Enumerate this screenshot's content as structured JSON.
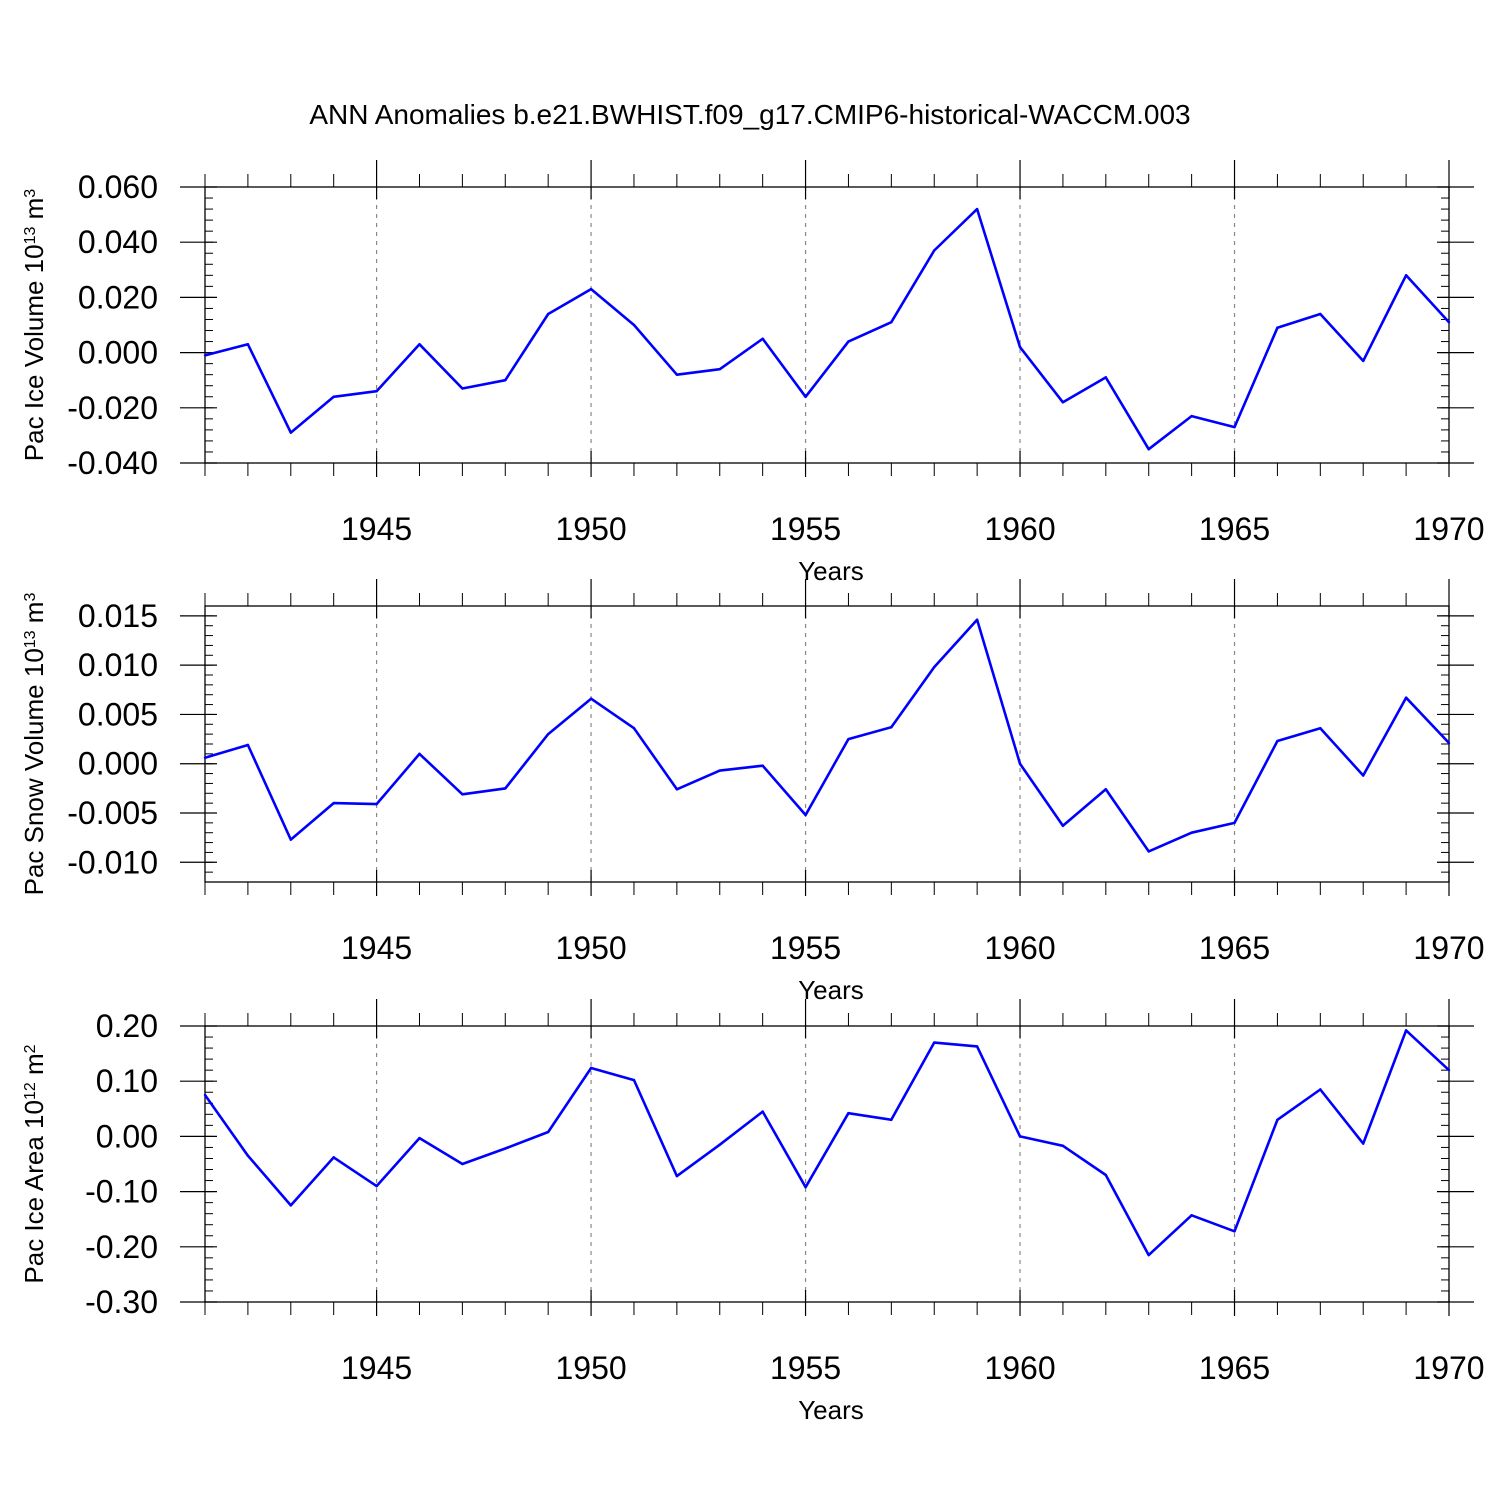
{
  "figure": {
    "title": "ANN Anomalies b.e21.BWHIST.f09_g17.CMIP6-historical-WACCM.003"
  },
  "chart_data": [
    {
      "type": "line",
      "ylabel": "Pac Ice Volume",
      "ylabel_units": {
        "base": "10",
        "exp": "13",
        "unit": "m",
        "unit_exp": "3"
      },
      "xlabel": "Years",
      "xlim": [
        1941,
        1970
      ],
      "ylim": [
        -0.04,
        0.06
      ],
      "yticks": [
        "0.060",
        "0.040",
        "0.020",
        "0.000",
        "-0.020",
        "-0.040"
      ],
      "yticks_values": [
        0.06,
        0.04,
        0.02,
        0.0,
        -0.02,
        -0.04
      ],
      "xticks": [
        "1945",
        "1950",
        "1955",
        "1960",
        "1965",
        "1970"
      ],
      "xticks_values": [
        1945,
        1950,
        1955,
        1960,
        1965,
        1970
      ],
      "line_color": "#0000ff",
      "x": [
        1941,
        1942,
        1943,
        1944,
        1945,
        1946,
        1947,
        1948,
        1949,
        1950,
        1951,
        1952,
        1953,
        1954,
        1955,
        1956,
        1957,
        1958,
        1959,
        1960,
        1961,
        1962,
        1963,
        1964,
        1965,
        1966,
        1967,
        1968,
        1969,
        1970
      ],
      "values": [
        -0.001,
        0.003,
        -0.029,
        -0.016,
        -0.014,
        0.003,
        -0.013,
        -0.01,
        0.014,
        0.023,
        0.01,
        -0.008,
        -0.006,
        0.005,
        -0.016,
        0.004,
        0.011,
        0.037,
        0.052,
        0.002,
        -0.018,
        -0.009,
        -0.035,
        -0.023,
        -0.027,
        0.009,
        0.014,
        -0.003,
        0.028,
        0.011
      ]
    },
    {
      "type": "line",
      "ylabel": "Pac Snow Volume",
      "ylabel_units": {
        "base": "10",
        "exp": "13",
        "unit": "m",
        "unit_exp": "3"
      },
      "xlabel": "Years",
      "xlim": [
        1941,
        1970
      ],
      "ylim": [
        -0.012,
        0.016
      ],
      "yticks": [
        "0.015",
        "0.010",
        "0.005",
        "0.000",
        "-0.005",
        "-0.010"
      ],
      "yticks_values": [
        0.015,
        0.01,
        0.005,
        0.0,
        -0.005,
        -0.01
      ],
      "xticks": [
        "1945",
        "1950",
        "1955",
        "1960",
        "1965",
        "1970"
      ],
      "xticks_values": [
        1945,
        1950,
        1955,
        1960,
        1965,
        1970
      ],
      "line_color": "#0000ff",
      "x": [
        1941,
        1942,
        1943,
        1944,
        1945,
        1946,
        1947,
        1948,
        1949,
        1950,
        1951,
        1952,
        1953,
        1954,
        1955,
        1956,
        1957,
        1958,
        1959,
        1960,
        1961,
        1962,
        1963,
        1964,
        1965,
        1966,
        1967,
        1968,
        1969,
        1970
      ],
      "values": [
        0.0006,
        0.0019,
        -0.0077,
        -0.004,
        -0.0041,
        0.001,
        -0.0031,
        -0.0025,
        0.003,
        0.0066,
        0.0036,
        -0.0026,
        -0.0007,
        -0.0002,
        -0.0052,
        0.0025,
        0.0037,
        0.0098,
        0.0146,
        0.0,
        -0.0063,
        -0.0026,
        -0.0089,
        -0.007,
        -0.006,
        0.0023,
        0.0036,
        -0.0012,
        0.0067,
        0.0021
      ]
    },
    {
      "type": "line",
      "ylabel": "Pac Ice Area",
      "ylabel_units": {
        "base": "10",
        "exp": "12",
        "unit": "m",
        "unit_exp": "2"
      },
      "xlabel": "Years",
      "xlim": [
        1941,
        1970
      ],
      "ylim": [
        -0.3,
        0.2
      ],
      "yticks": [
        "0.20",
        "0.10",
        "0.00",
        "-0.10",
        "-0.20",
        "-0.30"
      ],
      "yticks_values": [
        0.2,
        0.1,
        0.0,
        -0.1,
        -0.2,
        -0.3
      ],
      "xticks": [
        "1945",
        "1950",
        "1955",
        "1960",
        "1965",
        "1970"
      ],
      "xticks_values": [
        1945,
        1950,
        1955,
        1960,
        1965,
        1970
      ],
      "line_color": "#0000ff",
      "x": [
        1941,
        1942,
        1943,
        1944,
        1945,
        1946,
        1947,
        1948,
        1949,
        1950,
        1951,
        1952,
        1953,
        1954,
        1955,
        1956,
        1957,
        1958,
        1959,
        1960,
        1961,
        1962,
        1963,
        1964,
        1965,
        1966,
        1967,
        1968,
        1969,
        1970
      ],
      "values": [
        0.075,
        -0.035,
        -0.125,
        -0.038,
        -0.09,
        -0.003,
        -0.05,
        -0.022,
        0.008,
        0.124,
        0.102,
        -0.072,
        -0.015,
        0.045,
        -0.092,
        0.042,
        0.03,
        0.17,
        0.163,
        0.0,
        -0.017,
        -0.07,
        -0.215,
        -0.143,
        -0.172,
        0.03,
        0.085,
        -0.013,
        0.192,
        0.12
      ]
    }
  ]
}
